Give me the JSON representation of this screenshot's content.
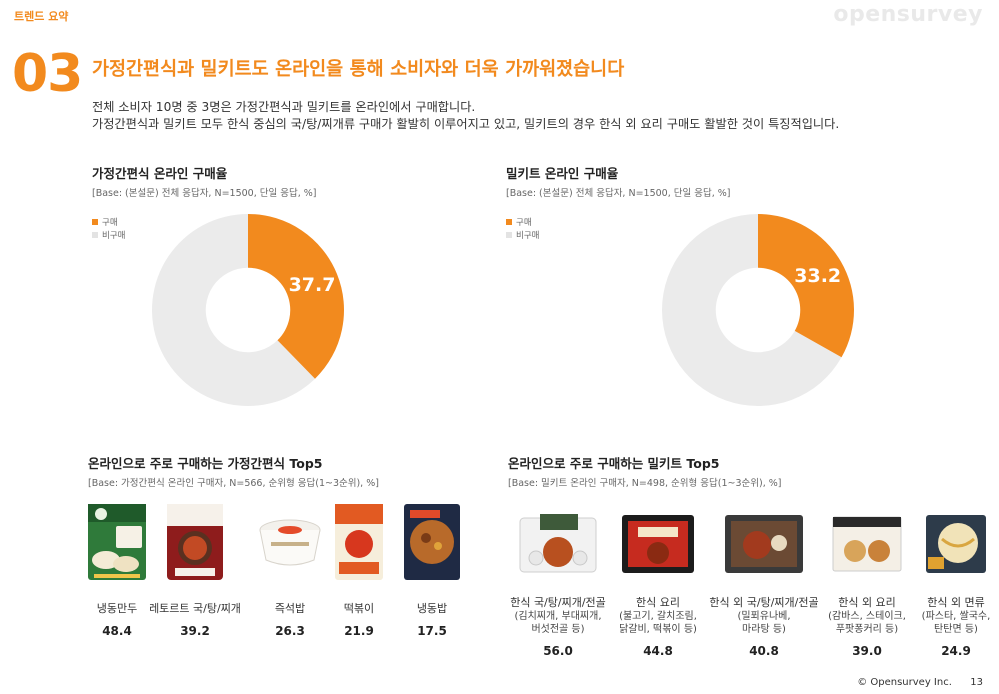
{
  "header": {
    "section_tag": "트렌드 요약",
    "brand": "opensurvey",
    "section_number": "03",
    "headline": "가정간편식과 밀키트도 온라인을 통해 소비자와 더욱 가까워졌습니다",
    "desc_line1": "전체 소비자 10명 중 3명은 가정간편식과 밀키트를 온라인에서 구매합니다.",
    "desc_line2": "가정간편식과 밀키트 모두 한식 중심의 국/탕/찌개류 구매가 활발히 이루어지고 있고, 밀키트의 경우 한식 외 요리 구매도 활발한 것이 특징적입니다."
  },
  "colors": {
    "accent": "#f28a1e",
    "remainder": "#ebebeb",
    "brand_gray": "#e9e9e9"
  },
  "chart_data": [
    {
      "type": "pie",
      "title": "가정간편식 온라인 구매율",
      "base": "[Base: (본설문) 전체 응답자, N=1500, 단일 응답, %]",
      "legend": [
        "구매",
        "비구매"
      ],
      "legend_position": "top-left",
      "values": [
        37.7,
        62.3
      ],
      "label": "37.7"
    },
    {
      "type": "pie",
      "title": "밀키트 온라인 구매율",
      "base": "[Base: (본설문) 전체 응답자, N=1500, 단일 응답, %]",
      "legend": [
        "구매",
        "비구매"
      ],
      "legend_position": "top-left",
      "values": [
        33.2,
        66.8
      ],
      "label": "33.2"
    },
    {
      "type": "table",
      "title": "온라인으로 주로 구매하는 가정간편식 Top5",
      "base": "[Base: 가정간편식 온라인 구매자, N=566, 순위형 응답(1~3순위), %]",
      "categories": [
        "냉동만두",
        "레토르트 국/탕/찌개",
        "즉석밥",
        "떡볶이",
        "냉동밥"
      ],
      "values": [
        "48.4",
        "39.2",
        "26.3",
        "21.9",
        "17.5"
      ]
    },
    {
      "type": "table",
      "title": "온라인으로 주로 구매하는 밀키트 Top5",
      "base": "[Base: 밀키트 온라인 구매자, N=498, 순위형 응답(1~3순위), %]",
      "categories": [
        "한식 국/탕/찌개/전골",
        "한식 요리",
        "한식 외 국/탕/찌개/전골",
        "한식 외 요리",
        "한식 외 면류"
      ],
      "examples": [
        [
          "(김치찌개, 부대찌개,",
          "버섯전골 등)"
        ],
        [
          "(불고기, 갈치조림,",
          "닭갈비, 떡볶이 등)"
        ],
        [
          "(밀푀유나베,",
          "마라탕 등)"
        ],
        [
          "(감바스, 스테이크,",
          "푸팟퐁커리 등)"
        ],
        [
          "(파스타, 쌀국수,",
          "탄탄면 등)"
        ]
      ],
      "values": [
        "56.0",
        "44.8",
        "40.8",
        "39.0",
        "24.9"
      ]
    }
  ],
  "footer": {
    "copyright": "© Opensurvey Inc.",
    "page": "13"
  }
}
